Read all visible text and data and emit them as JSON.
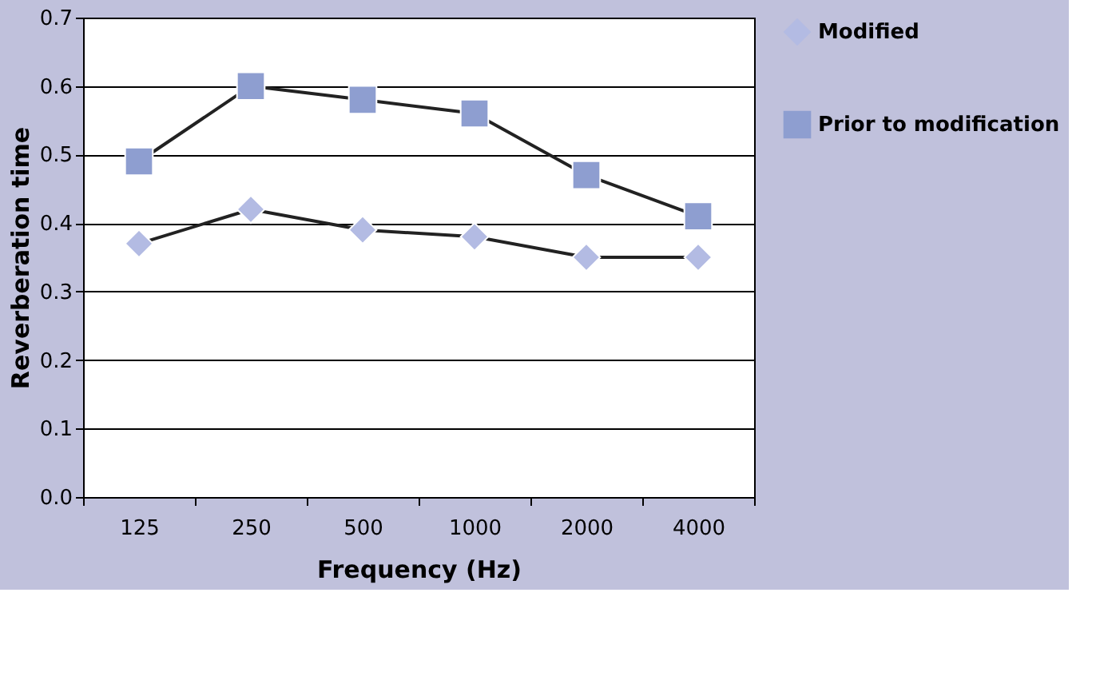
{
  "chart_data": {
    "type": "line",
    "xlabel": "Frequency (Hz)",
    "ylabel": "Reverberation time",
    "categories": [
      "125",
      "250",
      "500",
      "1000",
      "2000",
      "4000"
    ],
    "series": [
      {
        "name": "Modified",
        "color": "#b3bbe3",
        "marker": "diamond",
        "values": [
          0.37,
          0.42,
          0.39,
          0.38,
          0.35,
          0.35
        ]
      },
      {
        "name": "Prior to modification",
        "color": "#8e9ed0",
        "marker": "square",
        "values": [
          0.49,
          0.6,
          0.58,
          0.56,
          0.47,
          0.41
        ]
      }
    ],
    "ylim": [
      0,
      0.7
    ],
    "yticks": [
      {
        "value": 0,
        "label": "0.0"
      },
      0.1,
      0.2,
      0.3,
      0.4,
      0.5,
      0.6,
      0.7
    ],
    "grid": "y",
    "legend": "right",
    "line_style": "solid"
  }
}
